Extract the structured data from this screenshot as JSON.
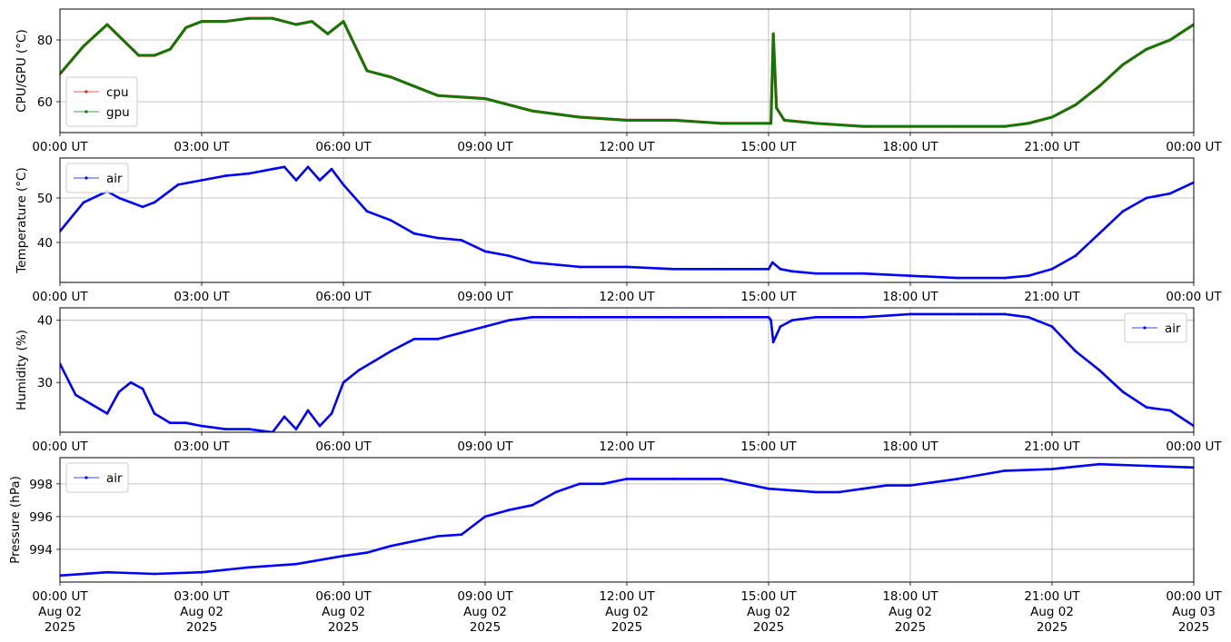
{
  "x_tick_labels": [
    "00:00 UT",
    "03:00 UT",
    "06:00 UT",
    "09:00 UT",
    "12:00 UT",
    "15:00 UT",
    "18:00 UT",
    "21:00 UT",
    "00:00 UT"
  ],
  "x_tick_dates": [
    "Aug 02",
    "Aug 02",
    "Aug 02",
    "Aug 02",
    "Aug 02",
    "Aug 02",
    "Aug 02",
    "Aug 02",
    "Aug 03"
  ],
  "x_tick_years": [
    "2025",
    "2025",
    "2025",
    "2025",
    "2025",
    "2025",
    "2025",
    "2025",
    "2025"
  ],
  "chart_data": [
    {
      "type": "line",
      "ylabel": "CPU/GPU (°C)",
      "xlim": [
        "2025-08-02 00:00",
        "2025-08-03 00:00"
      ],
      "ylim": [
        50,
        90
      ],
      "yticks": [
        60,
        80
      ],
      "grid": true,
      "legend": "lower-left",
      "series": [
        {
          "name": "cpu",
          "color": "#d62728",
          "x": [
            "00:00",
            "00:30",
            "01:00",
            "01:20",
            "01:40",
            "02:00",
            "02:20",
            "02:40",
            "03:00",
            "03:30",
            "04:00",
            "04:30",
            "05:00",
            "05:20",
            "05:40",
            "06:00",
            "06:15",
            "06:30",
            "07:00",
            "07:30",
            "08:00",
            "09:00",
            "10:00",
            "11:00",
            "12:00",
            "13:00",
            "14:00",
            "14:55",
            "15:03",
            "15:06",
            "15:10",
            "15:20",
            "16:00",
            "17:00",
            "18:00",
            "19:00",
            "20:00",
            "20:30",
            "21:00",
            "21:30",
            "22:00",
            "22:30",
            "23:00",
            "23:30",
            "24:00"
          ],
          "y": [
            69,
            78,
            85,
            80,
            75,
            75,
            77,
            84,
            86,
            86,
            87,
            87,
            85,
            86,
            82,
            86,
            78,
            70,
            68,
            65,
            62,
            61,
            57,
            55,
            54,
            54,
            53,
            53,
            53,
            82,
            58,
            54,
            53,
            52,
            52,
            52,
            52,
            53,
            55,
            59,
            65,
            72,
            77,
            80,
            85
          ]
        },
        {
          "name": "gpu",
          "color": "#008000",
          "x": [
            "00:00",
            "00:30",
            "01:00",
            "01:20",
            "01:40",
            "02:00",
            "02:20",
            "02:40",
            "03:00",
            "03:30",
            "04:00",
            "04:30",
            "05:00",
            "05:20",
            "05:40",
            "06:00",
            "06:15",
            "06:30",
            "07:00",
            "07:30",
            "08:00",
            "09:00",
            "10:00",
            "11:00",
            "12:00",
            "13:00",
            "14:00",
            "14:55",
            "15:03",
            "15:06",
            "15:10",
            "15:20",
            "16:00",
            "17:00",
            "18:00",
            "19:00",
            "20:00",
            "20:30",
            "21:00",
            "21:30",
            "22:00",
            "22:30",
            "23:00",
            "23:30",
            "24:00"
          ],
          "y": [
            69,
            78,
            85,
            80,
            75,
            75,
            77,
            84,
            86,
            86,
            87,
            87,
            85,
            86,
            82,
            86,
            78,
            70,
            68,
            65,
            62,
            61,
            57,
            55,
            54,
            54,
            53,
            53,
            53,
            82,
            58,
            54,
            53,
            52,
            52,
            52,
            52,
            53,
            55,
            59,
            65,
            72,
            77,
            80,
            85
          ]
        }
      ]
    },
    {
      "type": "line",
      "ylabel": "Temperature (°C)",
      "xlim": [
        "2025-08-02 00:00",
        "2025-08-03 00:00"
      ],
      "ylim": [
        31,
        59
      ],
      "yticks": [
        40,
        50
      ],
      "grid": true,
      "legend": "upper-left",
      "series": [
        {
          "name": "air",
          "color": "#0000ff",
          "x": [
            "00:00",
            "00:30",
            "01:00",
            "01:15",
            "01:30",
            "01:45",
            "02:00",
            "02:30",
            "03:00",
            "03:30",
            "04:00",
            "04:30",
            "04:45",
            "05:00",
            "05:15",
            "05:30",
            "05:45",
            "06:00",
            "06:30",
            "07:00",
            "07:30",
            "08:00",
            "08:30",
            "09:00",
            "09:30",
            "10:00",
            "11:00",
            "12:00",
            "13:00",
            "14:00",
            "15:00",
            "15:05",
            "15:15",
            "15:30",
            "16:00",
            "17:00",
            "18:00",
            "19:00",
            "20:00",
            "20:30",
            "21:00",
            "21:30",
            "22:00",
            "22:30",
            "23:00",
            "23:30",
            "24:00"
          ],
          "y": [
            42.5,
            49,
            51.5,
            50,
            49,
            48,
            49,
            53,
            54,
            55,
            55.5,
            56.5,
            57,
            54,
            57,
            54,
            56.5,
            53,
            47,
            45,
            42,
            41,
            40.5,
            38,
            37,
            35.5,
            34.5,
            34.5,
            34,
            34,
            34,
            35.5,
            34,
            33.5,
            33,
            33,
            32.5,
            32,
            32,
            32.5,
            34,
            37,
            42,
            47,
            50,
            51,
            53.5
          ]
        }
      ]
    },
    {
      "type": "line",
      "ylabel": "Humidity (%)",
      "xlim": [
        "2025-08-02 00:00",
        "2025-08-03 00:00"
      ],
      "ylim": [
        22,
        42
      ],
      "yticks": [
        30,
        40
      ],
      "grid": true,
      "legend": "upper-right",
      "series": [
        {
          "name": "air",
          "color": "#0000ff",
          "x": [
            "00:00",
            "00:20",
            "00:40",
            "01:00",
            "01:15",
            "01:30",
            "01:45",
            "02:00",
            "02:20",
            "02:40",
            "03:00",
            "03:30",
            "04:00",
            "04:30",
            "04:45",
            "05:00",
            "05:15",
            "05:30",
            "05:45",
            "06:00",
            "06:20",
            "06:40",
            "07:00",
            "07:30",
            "08:00",
            "08:30",
            "09:00",
            "09:30",
            "10:00",
            "11:00",
            "12:00",
            "13:00",
            "14:00",
            "15:00",
            "15:03",
            "15:06",
            "15:15",
            "15:30",
            "16:00",
            "17:00",
            "18:00",
            "19:00",
            "19:30",
            "20:00",
            "20:30",
            "21:00",
            "21:30",
            "22:00",
            "22:30",
            "23:00",
            "23:30",
            "24:00"
          ],
          "y": [
            33,
            28,
            26.5,
            25,
            28.5,
            30,
            29,
            25,
            23.5,
            23.5,
            23,
            22.5,
            22.5,
            22,
            24.5,
            22.5,
            25.5,
            23,
            25,
            30,
            32,
            33.5,
            35,
            37,
            37,
            38,
            39,
            40,
            40.5,
            40.5,
            40.5,
            40.5,
            40.5,
            40.5,
            40,
            36.5,
            39,
            40,
            40.5,
            40.5,
            41,
            41,
            41,
            41,
            40.5,
            39,
            35,
            32,
            28.5,
            26,
            25.5,
            23
          ]
        }
      ]
    },
    {
      "type": "line",
      "ylabel": "Pressure (hPa)",
      "xlim": [
        "2025-08-02 00:00",
        "2025-08-03 00:00"
      ],
      "ylim": [
        992,
        999.6
      ],
      "yticks": [
        994,
        996,
        998
      ],
      "grid": true,
      "legend": "upper-left",
      "series": [
        {
          "name": "air",
          "color": "#0000ff",
          "x": [
            "00:00",
            "01:00",
            "02:00",
            "03:00",
            "04:00",
            "05:00",
            "06:00",
            "06:30",
            "07:00",
            "07:30",
            "08:00",
            "08:30",
            "09:00",
            "09:30",
            "10:00",
            "10:30",
            "11:00",
            "11:30",
            "12:00",
            "13:00",
            "14:00",
            "15:00",
            "15:30",
            "16:00",
            "16:30",
            "17:00",
            "17:30",
            "18:00",
            "19:00",
            "20:00",
            "21:00",
            "22:00",
            "23:00",
            "24:00"
          ],
          "y": [
            992.4,
            992.6,
            992.5,
            992.6,
            992.9,
            993.1,
            993.6,
            993.8,
            994.2,
            994.5,
            994.8,
            994.9,
            996,
            996.4,
            996.7,
            997.5,
            998,
            998,
            998.3,
            998.3,
            998.3,
            997.7,
            997.6,
            997.5,
            997.5,
            997.7,
            997.9,
            997.9,
            998.3,
            998.8,
            998.9,
            999.2,
            999.1,
            999
          ]
        }
      ]
    }
  ]
}
